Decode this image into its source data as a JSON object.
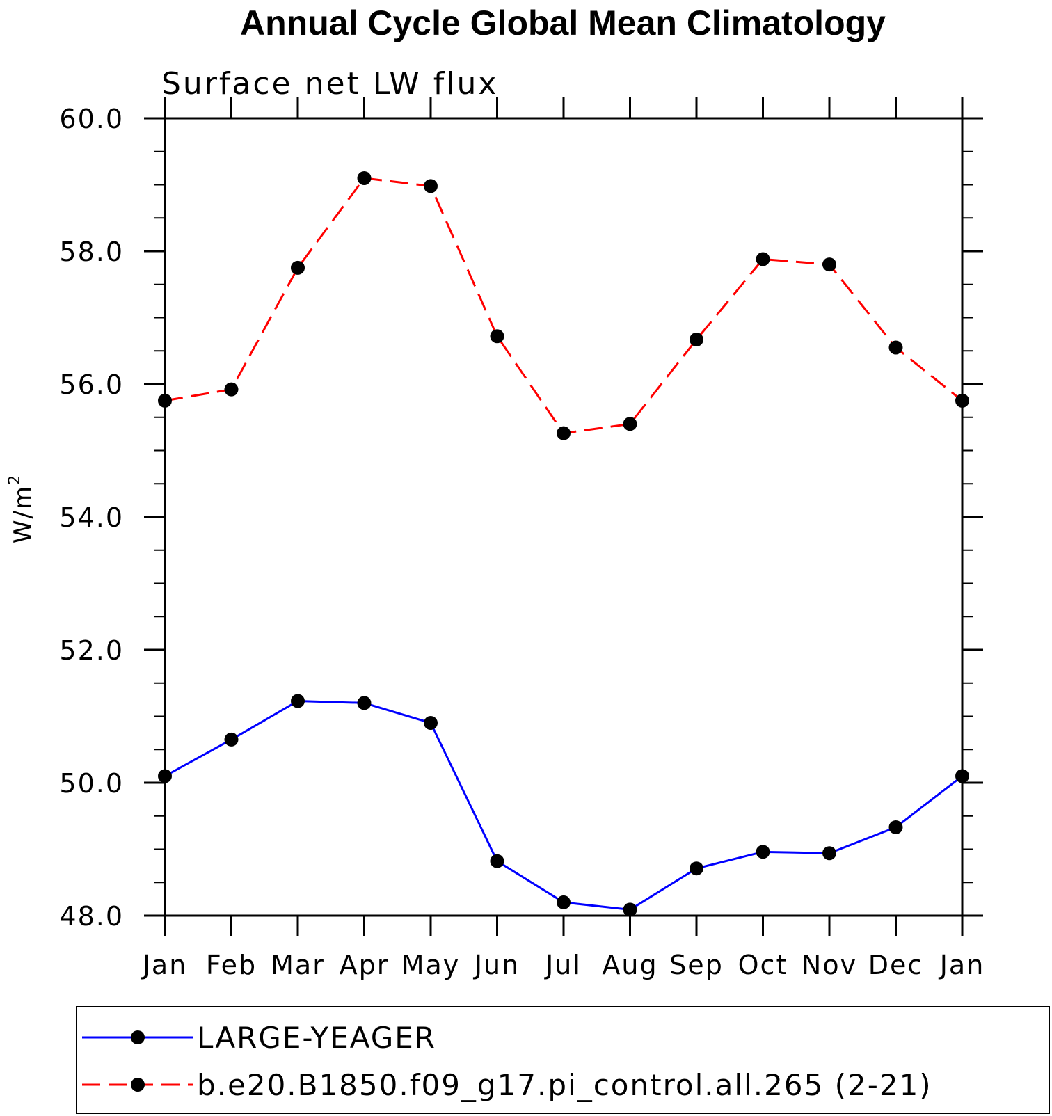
{
  "chart_data": {
    "type": "line",
    "title": "Annual Cycle Global Mean Climatology",
    "subtitle": "Surface net LW flux",
    "xlabel": "",
    "ylabel": "W/m",
    "ylabel_superscript": "2",
    "categories": [
      "Jan",
      "Feb",
      "Mar",
      "Apr",
      "May",
      "Jun",
      "Jul",
      "Aug",
      "Sep",
      "Oct",
      "Nov",
      "Dec",
      "Jan"
    ],
    "ylim": [
      48.0,
      60.0
    ],
    "yticks": [
      "48.0",
      "50.0",
      "52.0",
      "54.0",
      "56.0",
      "58.0",
      "60.0"
    ],
    "series": [
      {
        "name": "LARGE-YEAGER",
        "color": "#0000ff",
        "dash": "solid",
        "marker": "filled-circle",
        "values": [
          50.1,
          50.65,
          51.23,
          51.2,
          50.9,
          48.82,
          48.2,
          48.09,
          48.71,
          48.96,
          48.94,
          49.33,
          50.1
        ]
      },
      {
        "name": "b.e20.B1850.f09_g17.pi_control.all.265 (2-21)",
        "color": "#ff0000",
        "dash": "dashed",
        "marker": "filled-circle",
        "values": [
          55.75,
          55.92,
          57.75,
          59.1,
          58.98,
          56.72,
          55.26,
          55.4,
          56.67,
          57.88,
          57.8,
          56.55,
          55.75
        ]
      }
    ],
    "grid": false,
    "legend_position": "bottom"
  }
}
